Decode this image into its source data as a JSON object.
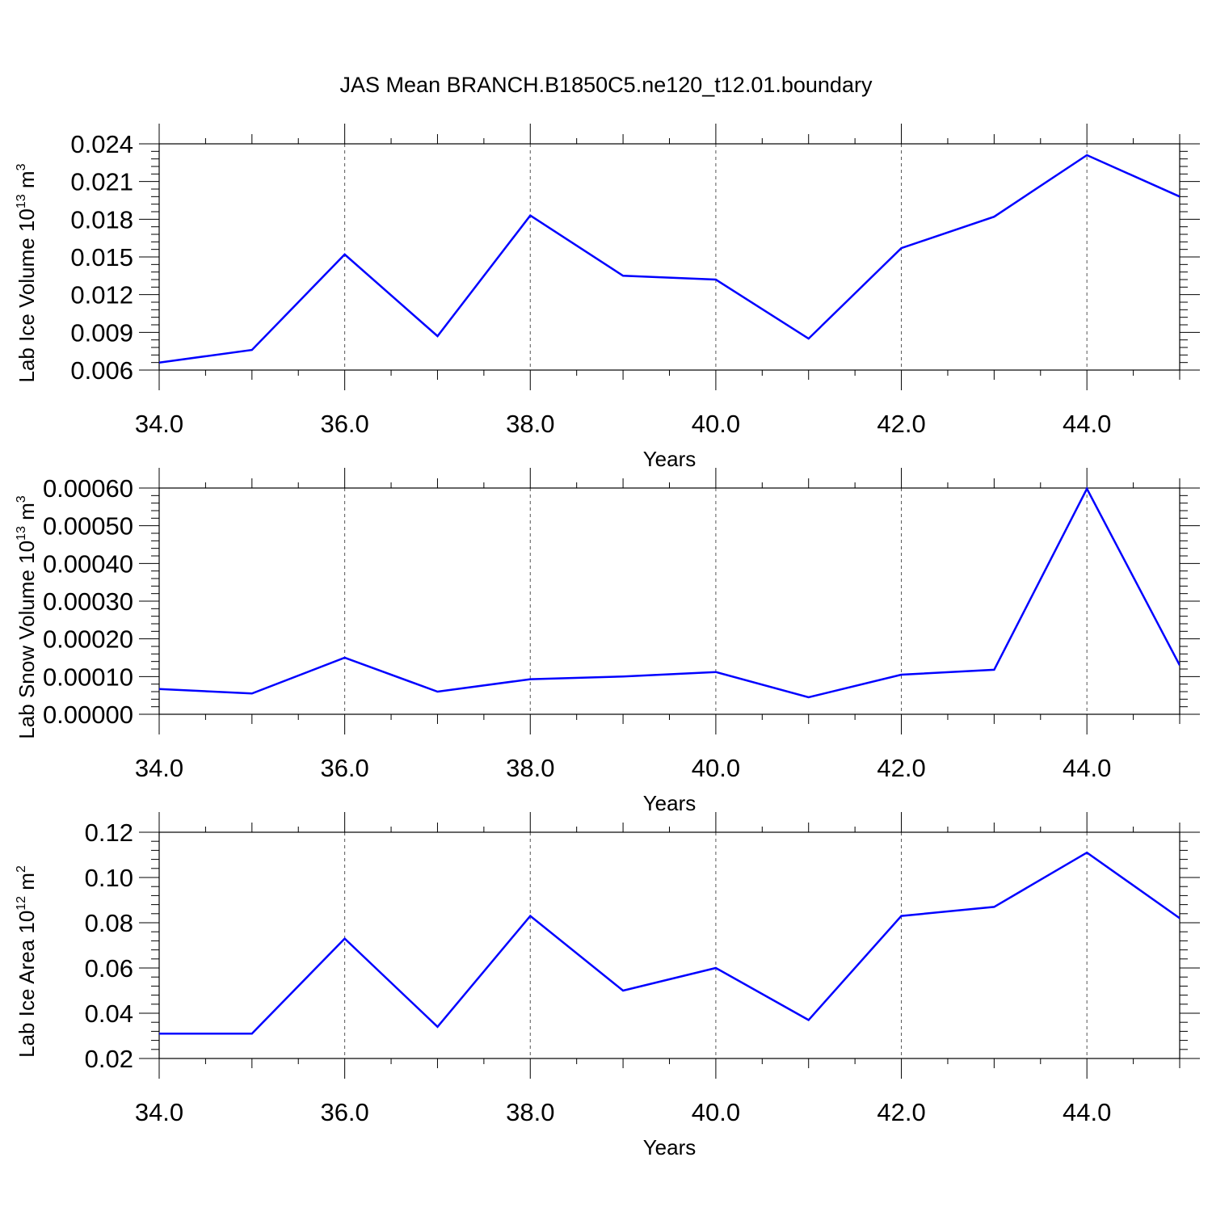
{
  "title": "JAS Mean BRANCH.B1850C5.ne120_t12.01.boundary",
  "line_color": "#0000ff",
  "chart_data": [
    {
      "type": "line",
      "xlabel": "Years",
      "ylabel": "Lab Ice Volume 10",
      "ylabel_exp": "13",
      "ylabel_unit": " m",
      "ylabel_unit_exp": "3",
      "xlim": [
        34,
        45
      ],
      "ylim": [
        0.006,
        0.024
      ],
      "x": [
        34,
        35,
        36,
        37,
        38,
        39,
        40,
        41,
        42,
        43,
        44,
        45
      ],
      "y": [
        0.0066,
        0.0076,
        0.0152,
        0.0087,
        0.0183,
        0.0135,
        0.0132,
        0.0085,
        0.0157,
        0.0182,
        0.0231,
        0.0198
      ],
      "xticks": [
        "34.0",
        "36.0",
        "38.0",
        "40.0",
        "42.0",
        "44.0"
      ],
      "xtick_values": [
        34,
        36,
        38,
        40,
        42,
        44
      ],
      "yticks": [
        "0.006",
        "0.009",
        "0.012",
        "0.015",
        "0.018",
        "0.021",
        "0.024"
      ],
      "ytick_values": [
        0.006,
        0.009,
        0.012,
        0.015,
        0.018,
        0.021,
        0.024
      ],
      "grid": "x-dashed"
    },
    {
      "type": "line",
      "xlabel": "Years",
      "ylabel": "Lab Snow Volume 10",
      "ylabel_exp": "13",
      "ylabel_unit": " m",
      "ylabel_unit_exp": "3",
      "xlim": [
        34,
        45
      ],
      "ylim": [
        0.0,
        0.0006
      ],
      "x": [
        34,
        35,
        36,
        37,
        38,
        39,
        40,
        41,
        42,
        43,
        44,
        45
      ],
      "y": [
        6.7e-05,
        5.5e-05,
        0.00015,
        6e-05,
        9.3e-05,
        0.0001,
        0.000112,
        4.5e-05,
        0.000105,
        0.000118,
        0.000598,
        0.00013
      ],
      "xticks": [
        "34.0",
        "36.0",
        "38.0",
        "40.0",
        "42.0",
        "44.0"
      ],
      "xtick_values": [
        34,
        36,
        38,
        40,
        42,
        44
      ],
      "yticks": [
        "0.00000",
        "0.00010",
        "0.00020",
        "0.00030",
        "0.00040",
        "0.00050",
        "0.00060"
      ],
      "ytick_values": [
        0,
        0.0001,
        0.0002,
        0.0003,
        0.0004,
        0.0005,
        0.0006
      ],
      "grid": "x-dashed"
    },
    {
      "type": "line",
      "xlabel": "Years",
      "ylabel": "Lab Ice Area 10",
      "ylabel_exp": "12",
      "ylabel_unit": " m",
      "ylabel_unit_exp": "2",
      "xlim": [
        34,
        45
      ],
      "ylim": [
        0.02,
        0.12
      ],
      "x": [
        34,
        35,
        36,
        37,
        38,
        39,
        40,
        41,
        42,
        43,
        44,
        45
      ],
      "y": [
        0.031,
        0.031,
        0.073,
        0.034,
        0.083,
        0.05,
        0.06,
        0.037,
        0.083,
        0.087,
        0.111,
        0.082
      ],
      "xticks": [
        "34.0",
        "36.0",
        "38.0",
        "40.0",
        "42.0",
        "44.0"
      ],
      "xtick_values": [
        34,
        36,
        38,
        40,
        42,
        44
      ],
      "yticks": [
        "0.02",
        "0.04",
        "0.06",
        "0.08",
        "0.10",
        "0.12"
      ],
      "ytick_values": [
        0.02,
        0.04,
        0.06,
        0.08,
        0.1,
        0.12
      ],
      "grid": "x-dashed"
    }
  ]
}
